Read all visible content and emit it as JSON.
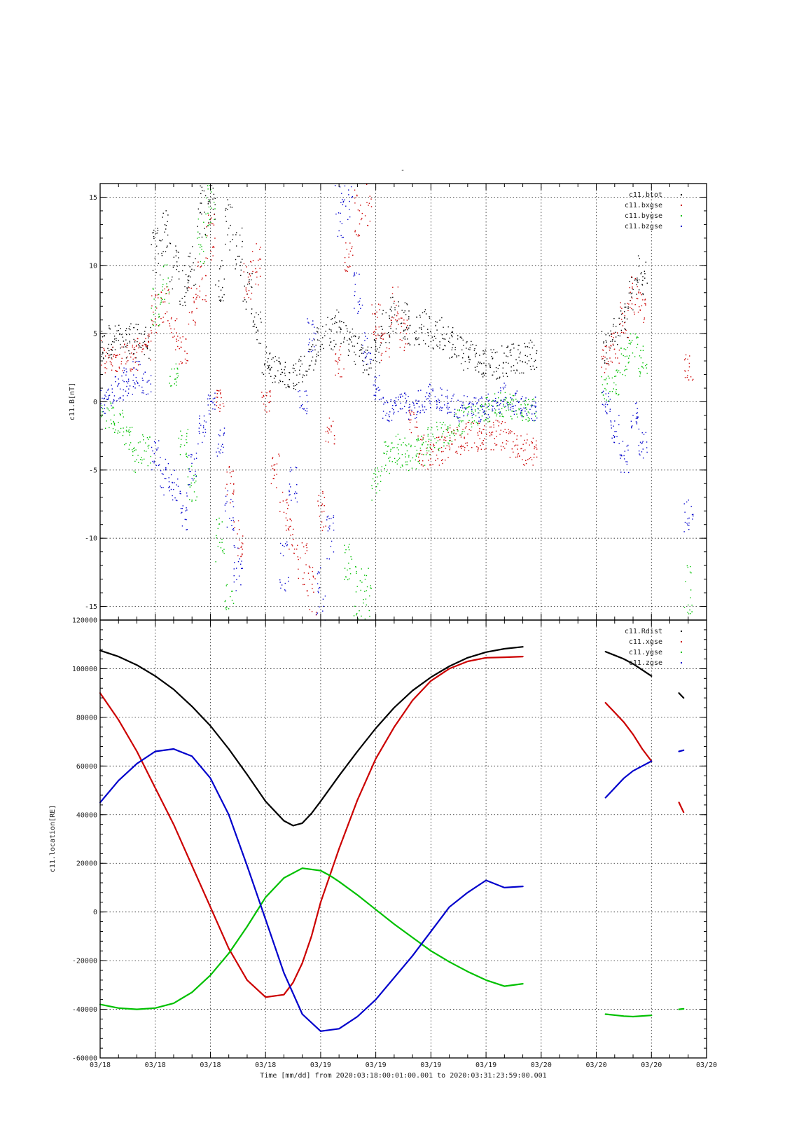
{
  "figure": {
    "top_marker": "-",
    "xlabel": "Time [mm/dd]  from 2020:03:18:00:01:00.001  to  2020:03:31:23:59:00.001",
    "x_tick_labels": [
      "03/18",
      "03/18",
      "03/18",
      "03/18",
      "03/19",
      "03/19",
      "03/19",
      "03/19",
      "03/20",
      "03/20",
      "03/20",
      "03/20"
    ],
    "x_tick_hours": [
      0,
      6,
      12,
      18,
      24,
      30,
      36,
      42,
      48,
      54,
      60,
      66
    ],
    "x_range_hours": [
      0,
      66
    ]
  },
  "colors": {
    "black": "#000000",
    "red": "#cc0000",
    "green": "#00c000",
    "blue": "#0000cc"
  },
  "chart_data": [
    {
      "type": "scatter",
      "ylabel": "c11.B[nT]",
      "ylim": [
        -16,
        16
      ],
      "yticks": [
        15,
        10,
        5,
        0,
        -5,
        -10,
        -15
      ],
      "ytick_labels": [
        "15",
        "10",
        "5",
        "0",
        "-5",
        "-10",
        "-15"
      ],
      "grid": true,
      "legend_position": "top-right",
      "x_unit": "hours since 2020-03-18 00:01",
      "series": [
        {
          "name": "c11.btot",
          "color": "black",
          "x": [
            0,
            1,
            2,
            3,
            4,
            5,
            6,
            7,
            8,
            9,
            10,
            11,
            12,
            13,
            14,
            15,
            16,
            17,
            18,
            19,
            20,
            21,
            22,
            23,
            24,
            25,
            26,
            27,
            28,
            29,
            30,
            31,
            32,
            33,
            34,
            35,
            36,
            37,
            38,
            39,
            40,
            41,
            42,
            43,
            44,
            45,
            46,
            47,
            48,
            49,
            50,
            51,
            52,
            53,
            54,
            55,
            56,
            57,
            58,
            59,
            60,
            61,
            62,
            63,
            64,
            65,
            66
          ],
          "y": [
            4,
            4.5,
            4.5,
            4.5,
            4.5,
            4.4,
            11,
            12.5,
            10,
            8.5,
            10,
            14,
            15,
            9,
            13,
            11,
            8,
            5.5,
            3,
            2.5,
            2,
            2,
            2.5,
            3.5,
            4.5,
            5,
            5.5,
            4.5,
            4,
            3,
            4,
            5.5,
            6.5,
            6,
            5.5,
            5.5,
            5,
            5,
            4.5,
            4,
            3.5,
            3.2,
            3,
            2.8,
            3,
            3.2,
            3.3,
            3.5,
            null,
            null,
            null,
            null,
            null,
            null,
            null,
            4,
            5,
            6,
            8,
            9.5,
            null,
            null,
            null,
            null,
            null,
            null,
            null
          ]
        },
        {
          "name": "c11.bxgse",
          "color": "red",
          "x": [
            0,
            1,
            2,
            3,
            4,
            5,
            6,
            7,
            8,
            9,
            10,
            11,
            12,
            13,
            14,
            15,
            16,
            17,
            18,
            19,
            20,
            21,
            22,
            23,
            24,
            25,
            26,
            27,
            28,
            29,
            30,
            31,
            32,
            33,
            34,
            35,
            36,
            37,
            38,
            39,
            40,
            41,
            42,
            43,
            44,
            45,
            46,
            47,
            48,
            49,
            50,
            51,
            52,
            53,
            54,
            55,
            56,
            57,
            58,
            59,
            60,
            61,
            62,
            63,
            64,
            65,
            66
          ],
          "y": [
            3.5,
            3,
            3.2,
            3.4,
            3.5,
            3.8,
            6.5,
            7,
            5,
            4,
            7,
            9,
            12,
            0,
            -6,
            -10,
            9,
            10,
            0,
            -5,
            -8,
            -10,
            -12,
            -14,
            -8,
            -2,
            3,
            10,
            14,
            15,
            6,
            4,
            7,
            5,
            -1.5,
            -3.5,
            -4,
            -3.5,
            -3,
            -2.8,
            -2.5,
            -2.6,
            -2.5,
            -2.4,
            -2.5,
            -3,
            -3.5,
            -3.5,
            null,
            null,
            null,
            null,
            null,
            null,
            null,
            3,
            4,
            6,
            8,
            7,
            null,
            null,
            null,
            null,
            2.5,
            null,
            null
          ]
        },
        {
          "name": "c11.bygse",
          "color": "green",
          "x": [
            0,
            1,
            2,
            3,
            4,
            5,
            6,
            7,
            8,
            9,
            10,
            11,
            12,
            13,
            14,
            15,
            16,
            17,
            18,
            19,
            20,
            21,
            22,
            23,
            24,
            25,
            26,
            27,
            28,
            29,
            30,
            31,
            32,
            33,
            34,
            35,
            36,
            37,
            38,
            39,
            40,
            41,
            42,
            43,
            44,
            45,
            46,
            47,
            48,
            49,
            50,
            51,
            52,
            53,
            54,
            55,
            56,
            57,
            58,
            59,
            60,
            61,
            62,
            63,
            64,
            65,
            66
          ],
          "y": [
            -0.5,
            -1,
            -1.5,
            -2.5,
            -4,
            -3.5,
            7,
            8.5,
            2,
            -3,
            -6,
            12,
            15,
            -10,
            -15,
            null,
            null,
            null,
            null,
            null,
            null,
            null,
            null,
            null,
            null,
            null,
            null,
            -12,
            -14,
            -14,
            -6,
            -4,
            -3.5,
            -3.6,
            -3.8,
            -3.5,
            -3,
            -2.5,
            -2,
            -1.5,
            -1.2,
            -0.8,
            -0.5,
            -0.3,
            -0.2,
            -0.3,
            -0.5,
            -0.7,
            null,
            null,
            null,
            null,
            null,
            null,
            null,
            1,
            1.5,
            3,
            4,
            3,
            null,
            null,
            null,
            null,
            -14,
            null,
            null
          ]
        },
        {
          "name": "c11.bzgse",
          "color": "blue",
          "x": [
            0,
            1,
            2,
            3,
            4,
            5,
            6,
            7,
            8,
            9,
            10,
            11,
            12,
            13,
            14,
            15,
            16,
            17,
            18,
            19,
            20,
            21,
            22,
            23,
            24,
            25,
            26,
            27,
            28,
            29,
            30,
            31,
            32,
            33,
            34,
            35,
            36,
            37,
            38,
            39,
            40,
            41,
            42,
            43,
            44,
            45,
            46,
            47,
            48,
            49,
            50,
            51,
            52,
            53,
            54,
            55,
            56,
            57,
            58,
            59,
            60,
            61,
            62,
            63,
            64,
            65,
            66
          ],
          "y": [
            0,
            0.5,
            1,
            1.5,
            2,
            1.5,
            -4,
            -5.5,
            -6,
            -8,
            -5,
            -2,
            0,
            -3,
            -8,
            -12,
            null,
            null,
            null,
            null,
            -12,
            -6,
            0,
            5,
            -14,
            -10,
            14,
            15,
            8,
            4,
            1,
            -0.5,
            -0.5,
            0,
            -0.5,
            0,
            0.5,
            0.3,
            0,
            -0.5,
            -0.3,
            -0.5,
            -0.3,
            0,
            0.5,
            0,
            -0.2,
            -0.5,
            null,
            null,
            null,
            null,
            null,
            null,
            null,
            0,
            -2,
            -4,
            -1,
            -3,
            null,
            null,
            null,
            null,
            -8,
            null,
            null
          ]
        }
      ]
    },
    {
      "type": "line",
      "ylabel": "c11.location[RE]",
      "ylim": [
        -60000,
        120000
      ],
      "yticks": [
        120000,
        100000,
        80000,
        60000,
        40000,
        20000,
        0,
        -20000,
        -40000,
        -60000
      ],
      "ytick_labels": [
        "120000",
        "100000",
        "80000",
        "60000",
        "40000",
        "20000",
        "0",
        "-20000",
        "-40000",
        "-60000"
      ],
      "grid": true,
      "legend_position": "top-right",
      "x_unit": "hours since 2020-03-18 00:01",
      "series": [
        {
          "name": "c11.Rdist",
          "color": "black",
          "x": [
            0,
            2,
            4,
            6,
            8,
            10,
            12,
            14,
            16,
            18,
            20,
            21,
            22,
            23,
            24,
            26,
            28,
            30,
            32,
            34,
            36,
            38,
            40,
            42,
            44,
            46,
            null,
            55,
            56,
            57,
            58,
            59,
            60,
            null,
            63,
            63.5
          ],
          "y": [
            107500,
            105000,
            101500,
            97000,
            91500,
            84500,
            76500,
            67000,
            56500,
            45500,
            37500,
            35500,
            36500,
            40500,
            45500,
            56000,
            66000,
            75500,
            84000,
            91000,
            96500,
            101000,
            104500,
            106800,
            108200,
            109000,
            null,
            107000,
            105500,
            104000,
            102000,
            99500,
            97000,
            null,
            90000,
            88000
          ]
        },
        {
          "name": "c11.xgse",
          "color": "red",
          "x": [
            0,
            2,
            4,
            6,
            8,
            10,
            12,
            14,
            16,
            18,
            20,
            21,
            22,
            23,
            24,
            26,
            28,
            30,
            32,
            34,
            36,
            38,
            40,
            42,
            44,
            46,
            null,
            55,
            56,
            57,
            58,
            59,
            60,
            null,
            63,
            63.5
          ],
          "y": [
            90000,
            79000,
            66000,
            51000,
            36000,
            19000,
            2000,
            -15000,
            -28000,
            -35000,
            -34000,
            -29000,
            -21000,
            -10000,
            4000,
            26000,
            46000,
            63000,
            76000,
            87000,
            95000,
            100000,
            103000,
            104500,
            104700,
            105000,
            null,
            86000,
            82000,
            78000,
            73000,
            67000,
            62000,
            null,
            45000,
            41000
          ]
        },
        {
          "name": "c11.ygse",
          "color": "green",
          "x": [
            0,
            2,
            4,
            6,
            8,
            10,
            12,
            14,
            16,
            18,
            20,
            22,
            24,
            25,
            26,
            28,
            30,
            32,
            34,
            36,
            38,
            40,
            42,
            44,
            46,
            null,
            55,
            57,
            58,
            60,
            null,
            63,
            63.5
          ],
          "y": [
            -38000,
            -39500,
            -40000,
            -39500,
            -37500,
            -33000,
            -26000,
            -17000,
            -6000,
            6000,
            14000,
            18000,
            17000,
            15000,
            12500,
            7000,
            1000,
            -5000,
            -10500,
            -16000,
            -20500,
            -24500,
            -28000,
            -30500,
            -29500,
            null,
            -42000,
            -42800,
            -43000,
            -42500,
            null,
            -40000,
            -39800
          ]
        },
        {
          "name": "c11.zgse",
          "color": "blue",
          "x": [
            0,
            2,
            4,
            6,
            8,
            10,
            12,
            14,
            16,
            18,
            20,
            22,
            24,
            26,
            28,
            30,
            32,
            34,
            36,
            38,
            40,
            42,
            44,
            46,
            null,
            55,
            56,
            57,
            58,
            59,
            60,
            null,
            63,
            63.5
          ],
          "y": [
            45000,
            54000,
            61000,
            66000,
            67000,
            64000,
            55000,
            40000,
            19000,
            -3000,
            -25000,
            -42000,
            -49000,
            -48000,
            -43000,
            -36000,
            -27000,
            -18000,
            -8000,
            2000,
            8000,
            13000,
            10000,
            10500,
            null,
            47000,
            51000,
            55000,
            58000,
            60000,
            62000,
            null,
            66000,
            66500
          ]
        }
      ]
    }
  ]
}
